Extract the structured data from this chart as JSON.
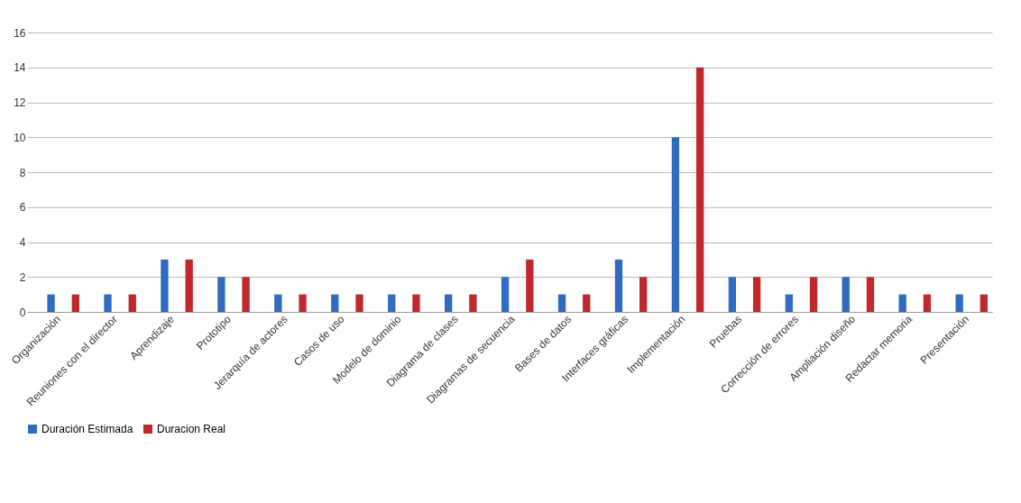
{
  "chart_data": {
    "type": "bar",
    "categories": [
      "Organización",
      "Reuniones con el director",
      "Aprendizaje",
      "Prototipo",
      "Jerarquía de actores",
      "Casos de uso",
      "Modelo de dominio",
      "Diagrama de clases",
      "Diagramas de secuencia",
      "Bases de datos",
      "Interfaces gráficas",
      "Implementación",
      "Pruebas",
      "Corrección de errores",
      "Ampliación diseño",
      "Redactar memoria",
      "Presentación"
    ],
    "series": [
      {
        "name": "Duración Estimada",
        "color": "#2f6bbf",
        "values": [
          1,
          1,
          3,
          2,
          1,
          1,
          1,
          1,
          2,
          1,
          3,
          10,
          2,
          1,
          2,
          1,
          1
        ]
      },
      {
        "name": "Duracion Real",
        "color": "#c0282d",
        "values": [
          1,
          1,
          3,
          2,
          1,
          1,
          1,
          1,
          3,
          1,
          2,
          14,
          2,
          2,
          2,
          1,
          1
        ]
      }
    ],
    "ylim": [
      0,
      16
    ],
    "yticks": [
      0,
      2,
      4,
      6,
      8,
      10,
      12,
      14,
      16
    ],
    "grid": "y",
    "legend": "bottom"
  }
}
